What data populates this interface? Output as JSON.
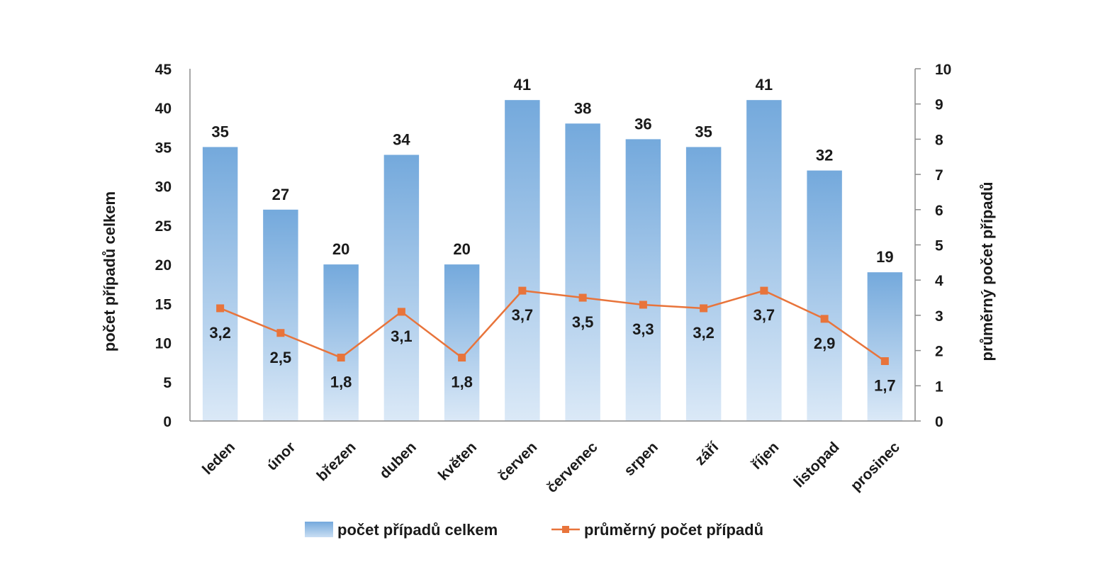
{
  "chart_data": {
    "type": "bar",
    "categories": [
      "leden",
      "únor",
      "březen",
      "duben",
      "květen",
      "červen",
      "červenec",
      "srpen",
      "září",
      "říjen",
      "listopad",
      "prosinec"
    ],
    "series": [
      {
        "name": "počet případů celkem",
        "type": "bar",
        "axis": "left",
        "values": [
          35,
          27,
          20,
          34,
          20,
          41,
          38,
          36,
          35,
          41,
          32,
          19
        ],
        "labels": [
          "35",
          "27",
          "20",
          "34",
          "20",
          "41",
          "38",
          "36",
          "35",
          "41",
          "32",
          "19"
        ],
        "color": "#7fb0df"
      },
      {
        "name": "průměrný počet případů",
        "type": "line",
        "axis": "right",
        "values": [
          3.2,
          2.5,
          1.8,
          3.1,
          1.8,
          3.7,
          3.5,
          3.3,
          3.2,
          3.7,
          2.9,
          1.7
        ],
        "labels": [
          "3,2",
          "2,5",
          "1,8",
          "3,1",
          "1,8",
          "3,7",
          "3,5",
          "3,3",
          "3,2",
          "3,7",
          "2,9",
          "1,7"
        ],
        "color": "#e8743b"
      }
    ],
    "title": "",
    "xlabel": "",
    "ylabel": "počet případů celkem",
    "y2label": "průměrný počet případů",
    "ylim": [
      0,
      45
    ],
    "yticks": [
      "0",
      "5",
      "10",
      "15",
      "20",
      "25",
      "30",
      "35",
      "40",
      "45"
    ],
    "y2lim": [
      0,
      10
    ],
    "y2ticks": [
      "0",
      "1",
      "2",
      "3",
      "4",
      "5",
      "6",
      "7",
      "8",
      "9",
      "10"
    ],
    "grid": false,
    "legend": "bottom-center"
  }
}
